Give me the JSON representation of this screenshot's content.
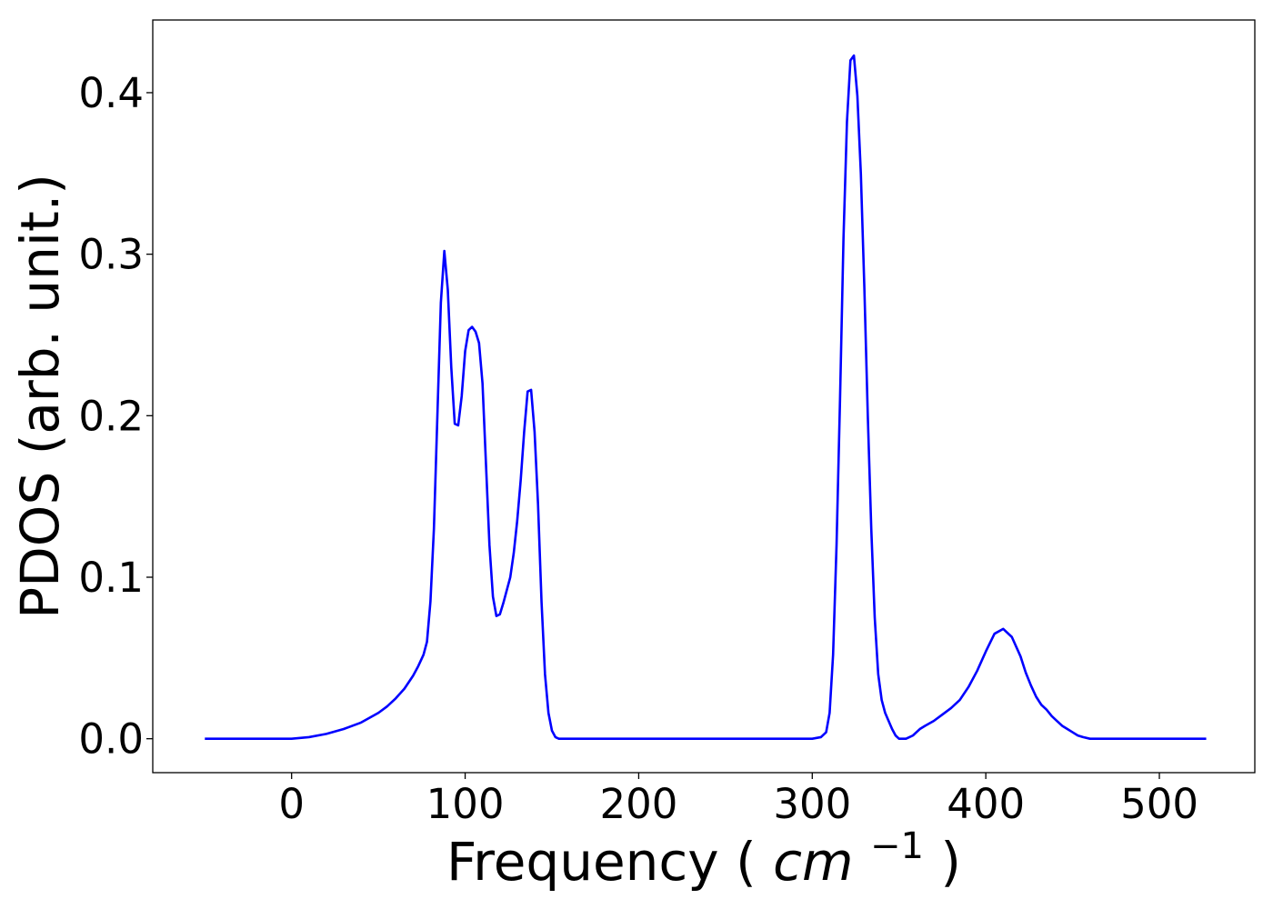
{
  "chart_data": {
    "type": "line",
    "title": "",
    "xlabel": "Frequency",
    "xlabel_unit": "cm",
    "xlabel_unit_exponent": "−1",
    "ylabel": "PDOS (arb. unit.)",
    "xlim": [
      -80,
      555
    ],
    "ylim": [
      -0.021,
      0.445
    ],
    "xticks": [
      0,
      100,
      200,
      300,
      400,
      500
    ],
    "xtick_labels": [
      "0",
      "100",
      "200",
      "300",
      "400",
      "500"
    ],
    "yticks": [
      0.0,
      0.1,
      0.2,
      0.3,
      0.4
    ],
    "ytick_labels": [
      "0.0",
      "0.1",
      "0.2",
      "0.3",
      "0.4"
    ],
    "grid": false,
    "series": [
      {
        "color": "#0000ff",
        "x": [
          -50,
          0,
          10,
          20,
          30,
          40,
          50,
          55,
          60,
          65,
          70,
          73,
          76,
          78,
          80,
          82,
          84,
          86,
          88,
          90,
          92,
          94,
          96,
          98,
          100,
          102,
          104,
          106,
          108,
          110,
          112,
          114,
          116,
          118,
          120,
          122,
          124,
          126,
          128,
          130,
          132,
          134,
          136,
          138,
          140,
          142,
          144,
          146,
          148,
          150,
          152,
          154,
          156,
          158,
          160,
          162,
          164,
          166,
          168,
          170,
          172,
          174,
          176,
          178,
          180,
          185,
          190,
          200,
          250,
          300,
          305,
          308,
          310,
          312,
          314,
          316,
          318,
          320,
          322,
          324,
          326,
          328,
          330,
          332,
          334,
          336,
          338,
          340,
          342,
          344,
          346,
          348,
          350,
          352,
          354,
          356,
          358,
          360,
          362,
          365,
          370,
          375,
          380,
          385,
          390,
          395,
          400,
          405,
          410,
          415,
          420,
          423,
          426,
          429,
          432,
          435,
          438,
          441,
          444,
          447,
          450,
          453,
          456,
          460,
          465,
          470,
          475,
          478,
          481,
          484,
          487,
          490,
          500,
          527
        ],
        "y": [
          0.0,
          0.0,
          0.001,
          0.003,
          0.006,
          0.01,
          0.016,
          0.02,
          0.025,
          0.031,
          0.039,
          0.045,
          0.052,
          0.06,
          0.085,
          0.13,
          0.2,
          0.27,
          0.302,
          0.278,
          0.23,
          0.195,
          0.194,
          0.212,
          0.24,
          0.253,
          0.255,
          0.252,
          0.245,
          0.22,
          0.17,
          0.12,
          0.088,
          0.076,
          0.077,
          0.084,
          0.092,
          0.1,
          0.115,
          0.135,
          0.16,
          0.19,
          0.215,
          0.216,
          0.19,
          0.145,
          0.085,
          0.04,
          0.016,
          0.005,
          0.001,
          0.0,
          0.0,
          0.0,
          0.0,
          0.0,
          0.0,
          0.0,
          0.0,
          0.0,
          0.0,
          0.0,
          0.0,
          0.0,
          0.0,
          0.0,
          0.0,
          0.0,
          0.0,
          0.0,
          0.001,
          0.004,
          0.016,
          0.052,
          0.12,
          0.21,
          0.31,
          0.382,
          0.42,
          0.423,
          0.398,
          0.35,
          0.28,
          0.2,
          0.13,
          0.075,
          0.04,
          0.024,
          0.016,
          0.011,
          0.006,
          0.002,
          0.0,
          0.0,
          0.0,
          0.001,
          0.002,
          0.004,
          0.006,
          0.008,
          0.011,
          0.015,
          0.019,
          0.024,
          0.032,
          0.042,
          0.054,
          0.065,
          0.068,
          0.063,
          0.051,
          0.041,
          0.033,
          0.026,
          0.021,
          0.018,
          0.014,
          0.011,
          0.008,
          0.006,
          0.004,
          0.002,
          0.001,
          0.0,
          0.0,
          0.0,
          0.0,
          0.0,
          0.0,
          0.0,
          0.0,
          0.0,
          0.0,
          0.0
        ]
      }
    ]
  }
}
